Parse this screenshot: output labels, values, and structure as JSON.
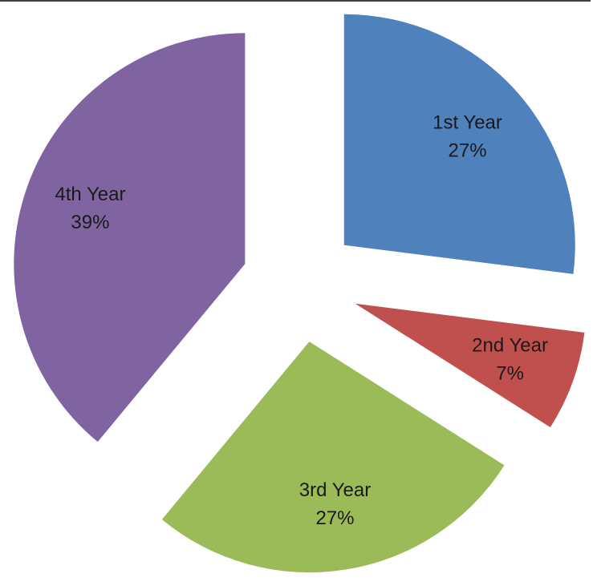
{
  "chart_data": {
    "type": "pie",
    "categories": [
      "1st Year",
      "2nd Year",
      "3rd Year",
      "4th Year"
    ],
    "values": [
      27,
      7,
      27,
      39
    ],
    "value_labels": [
      "27%",
      "7%",
      "27%",
      "39%"
    ],
    "colors": [
      "#4f81bd",
      "#c0504d",
      "#9bbb59",
      "#8064a2"
    ],
    "exploded": true
  }
}
